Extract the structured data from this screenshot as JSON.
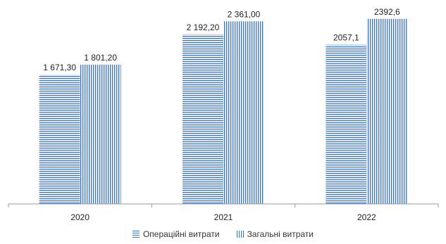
{
  "chart_data": {
    "type": "bar",
    "categories": [
      "2020",
      "2021",
      "2022"
    ],
    "series": [
      {
        "name": "Операційні витрати",
        "values": [
          1671.3,
          2192.2,
          2057.1
        ],
        "labels": [
          "1 671,30",
          "2 192,20",
          "2057,1"
        ],
        "pattern": "horizontal"
      },
      {
        "name": "Загальні витрати",
        "values": [
          1801.2,
          2361.0,
          2392.6
        ],
        "labels": [
          "1 801,20",
          "2 361,00",
          "2392,6"
        ],
        "pattern": "vertical"
      }
    ],
    "title": "",
    "xlabel": "",
    "ylabel": "",
    "ylim": [
      0,
      2600
    ],
    "grid": false,
    "legend_position": "bottom",
    "color": "#3b73c4"
  }
}
